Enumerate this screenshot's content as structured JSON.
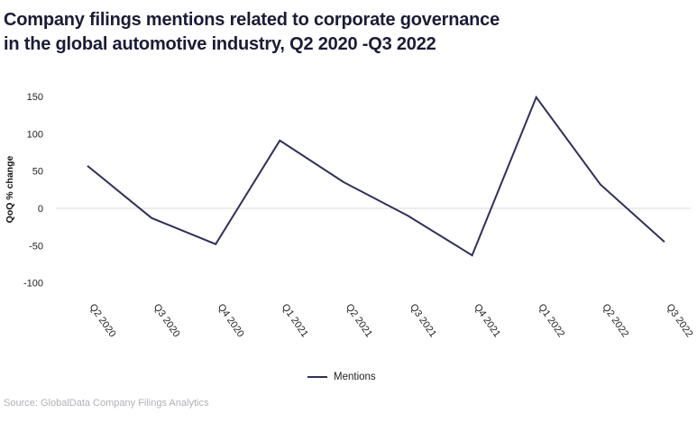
{
  "header": {
    "title_line1": "Company filings mentions related to corporate governance",
    "title_line2": "in the global automotive industry, Q2 2020 -Q3 2022"
  },
  "chart_data": {
    "type": "line",
    "title": "Company filings mentions related to corporate governance in the global automotive industry, Q2 2020 -Q3 2022",
    "categories": [
      "Q2 2020",
      "Q3 2020",
      "Q4 2020",
      "Q1 2021",
      "Q2 2021",
      "Q3 2021",
      "Q4 2021",
      "Q1 2022",
      "Q2 2022",
      "Q3 2022"
    ],
    "series": [
      {
        "name": "Mentions",
        "values": [
          57,
          -13,
          -48,
          91,
          35,
          -10,
          -63,
          149,
          32,
          -45
        ]
      }
    ],
    "xlabel": "",
    "ylabel": "QoQ % change",
    "yticks": [
      150,
      100,
      50,
      0,
      -50,
      -100
    ],
    "ylim": [
      -115,
      165
    ],
    "grid": "zero-baseline-only",
    "legend_position": "bottom-center",
    "x_label_rotation_deg": 55
  },
  "legend": {
    "label": "Mentions"
  },
  "footer": {
    "source": "Source: GlobalData Company Filings Analytics"
  },
  "colors": {
    "title": "#1b1c36",
    "line": "#30305a",
    "gridline": "#d9d9d9",
    "axis_text": "#222222",
    "axis_title_text": "#111111",
    "source_text": "#b1b1b6",
    "background": "#ffffff"
  }
}
